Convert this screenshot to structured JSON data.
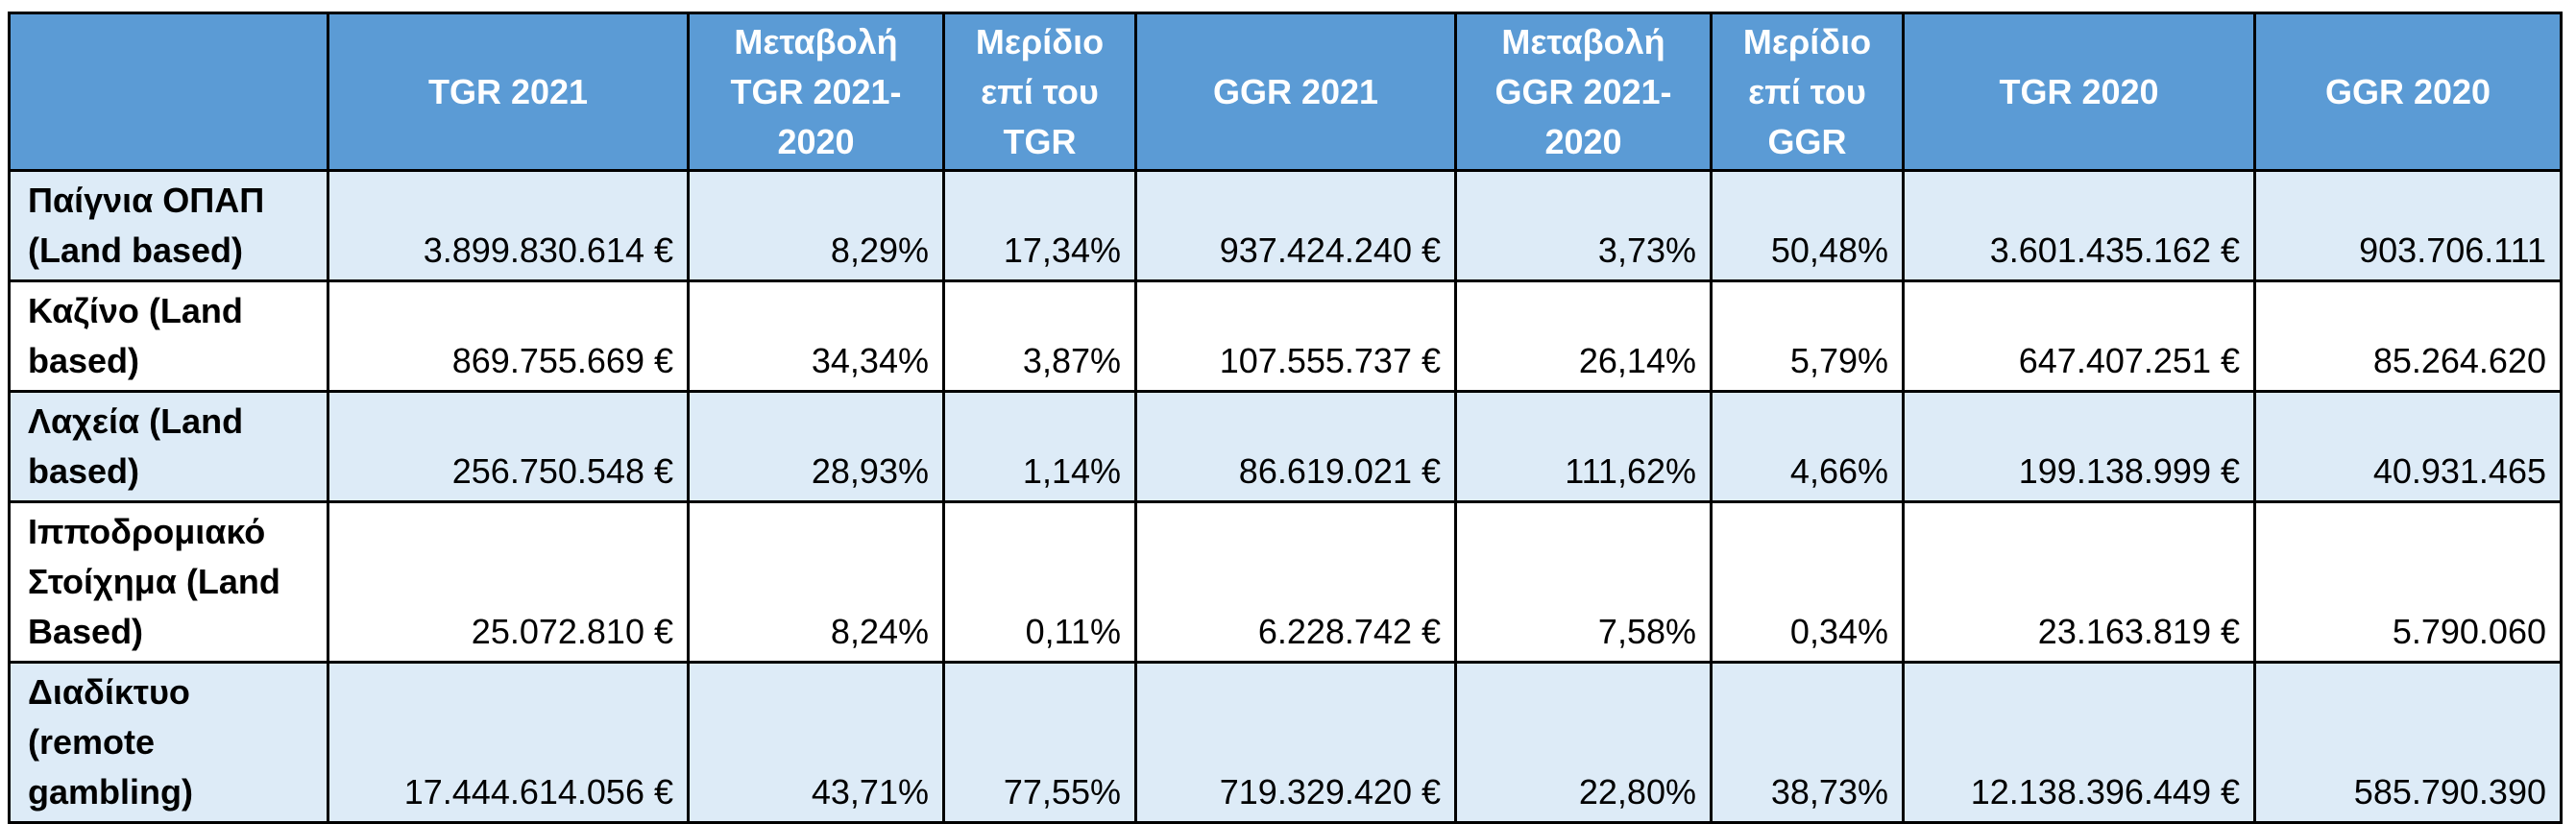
{
  "table": {
    "headers": [
      [
        ""
      ],
      [
        "TGR 2021"
      ],
      [
        "Μεταβολή",
        "TGR 2021-",
        "2020"
      ],
      [
        "Μερίδιο",
        "επί του",
        "TGR"
      ],
      [
        "GGR 2021"
      ],
      [
        "Μεταβολή",
        "GGR 2021-",
        "2020"
      ],
      [
        "Μερίδιο",
        "επί του",
        "GGR"
      ],
      [
        "TGR 2020"
      ],
      [
        "GGR 2020"
      ]
    ],
    "rows": [
      {
        "label": [
          "Παίγνια ΟΠΑΠ",
          "(Land based)"
        ],
        "cells": [
          "3.899.830.614 €",
          "8,29%",
          "17,34%",
          "937.424.240 €",
          "3,73%",
          "50,48%",
          "3.601.435.162 €",
          "903.706.111"
        ]
      },
      {
        "label": [
          "Καζίνο (Land",
          "based)"
        ],
        "cells": [
          "869.755.669 €",
          "34,34%",
          "3,87%",
          "107.555.737 €",
          "26,14%",
          "5,79%",
          "647.407.251 €",
          "85.264.620"
        ]
      },
      {
        "label": [
          "Λαχεία (Land",
          "based)"
        ],
        "cells": [
          "256.750.548 €",
          "28,93%",
          "1,14%",
          "86.619.021 €",
          "111,62%",
          "4,66%",
          "199.138.999 €",
          "40.931.465"
        ]
      },
      {
        "label": [
          "Ιπποδρομιακό",
          "Στοίχημα (Land",
          "Based)"
        ],
        "cells": [
          "25.072.810 €",
          "8,24%",
          "0,11%",
          "6.228.742 €",
          "7,58%",
          "0,34%",
          "23.163.819 €",
          "5.790.060"
        ]
      },
      {
        "label": [
          "Διαδίκτυο",
          "(remote",
          "gambling)"
        ],
        "cells": [
          "17.444.614.056 €",
          "43,71%",
          "77,55%",
          "719.329.420 €",
          "22,80%",
          "38,73%",
          "12.138.396.449 €",
          "585.790.390"
        ]
      }
    ]
  },
  "colors": {
    "header_bg": "#5b9bd5",
    "header_text": "#ffffff",
    "row_shade": "#ddebf7",
    "border": "#000000"
  }
}
